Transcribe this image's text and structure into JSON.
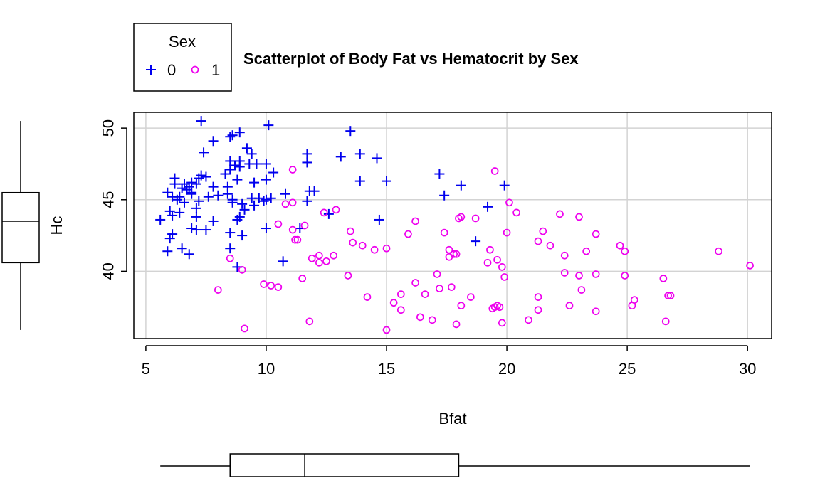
{
  "chart_data": {
    "type": "scatter",
    "title": "Scatterplot of Body Fat vs Hematocrit by Sex",
    "xlabel": "Bfat",
    "ylabel": "Hc",
    "xlim": [
      4.5,
      31.0
    ],
    "ylim": [
      35.3,
      51.1
    ],
    "xticks": [
      5,
      10,
      15,
      20,
      25,
      30
    ],
    "yticks": [
      40,
      45,
      50
    ],
    "grid": true,
    "legend": {
      "title": "Sex",
      "position": "top-left",
      "entries": [
        "0",
        "1"
      ]
    },
    "colors": {
      "0": "#0000ee",
      "1": "#ee00ee",
      "grid": "#d3d3d3",
      "axis": "#000000"
    },
    "markers": {
      "0": "plus",
      "1": "circle"
    },
    "marginal_boxplots": {
      "x": {
        "min": 5.6,
        "q1": 8.5,
        "median": 11.6,
        "q3": 18.0,
        "max": 30.1
      },
      "y": {
        "min": 35.9,
        "q1": 40.6,
        "median": 43.5,
        "q3": 45.5,
        "max": 50.5
      }
    },
    "series": [
      {
        "name": "0",
        "points": [
          [
            7.3,
            50.5
          ],
          [
            10.1,
            50.2
          ],
          [
            13.5,
            49.8
          ],
          [
            8.9,
            49.7
          ],
          [
            8.6,
            49.5
          ],
          [
            8.5,
            49.4
          ],
          [
            7.8,
            49.1
          ],
          [
            9.2,
            48.6
          ],
          [
            7.4,
            48.3
          ],
          [
            9.4,
            48.2
          ],
          [
            11.7,
            48.2
          ],
          [
            13.9,
            48.2
          ],
          [
            13.1,
            48.0
          ],
          [
            14.6,
            47.9
          ],
          [
            8.5,
            47.7
          ],
          [
            8.9,
            47.7
          ],
          [
            11.7,
            47.6
          ],
          [
            9.3,
            47.5
          ],
          [
            9.6,
            47.5
          ],
          [
            10.0,
            47.5
          ],
          [
            8.7,
            47.4
          ],
          [
            8.9,
            47.3
          ],
          [
            8.5,
            47.1
          ],
          [
            10.3,
            46.9
          ],
          [
            17.2,
            46.8
          ],
          [
            8.3,
            46.8
          ],
          [
            7.3,
            46.7
          ],
          [
            7.5,
            46.6
          ],
          [
            7.2,
            46.5
          ],
          [
            6.2,
            46.5
          ],
          [
            8.8,
            46.4
          ],
          [
            10.0,
            46.4
          ],
          [
            13.9,
            46.3
          ],
          [
            15.0,
            46.3
          ],
          [
            9.5,
            46.2
          ],
          [
            6.9,
            46.2
          ],
          [
            6.2,
            46.1
          ],
          [
            6.6,
            46.1
          ],
          [
            7.1,
            46.1
          ],
          [
            18.1,
            46.0
          ],
          [
            19.9,
            46.0
          ],
          [
            8.4,
            45.9
          ],
          [
            6.8,
            45.9
          ],
          [
            7.8,
            45.9
          ],
          [
            6.5,
            45.8
          ],
          [
            6.7,
            45.7
          ],
          [
            11.8,
            45.6
          ],
          [
            12.0,
            45.6
          ],
          [
            6.9,
            45.5
          ],
          [
            5.9,
            45.5
          ],
          [
            6.9,
            45.4
          ],
          [
            8.4,
            45.4
          ],
          [
            10.8,
            45.4
          ],
          [
            17.4,
            45.3
          ],
          [
            8.0,
            45.3
          ],
          [
            6.1,
            45.2
          ],
          [
            6.4,
            45.2
          ],
          [
            7.6,
            45.2
          ],
          [
            9.7,
            45.1
          ],
          [
            9.4,
            45.1
          ],
          [
            10.0,
            45.0
          ],
          [
            10.2,
            45.1
          ],
          [
            8.6,
            45.0
          ],
          [
            6.3,
            45.0
          ],
          [
            7.2,
            44.9
          ],
          [
            9.9,
            44.9
          ],
          [
            11.7,
            44.9
          ],
          [
            8.6,
            44.8
          ],
          [
            6.6,
            44.8
          ],
          [
            9.0,
            44.7
          ],
          [
            9.5,
            44.6
          ],
          [
            19.2,
            44.5
          ],
          [
            7.1,
            44.4
          ],
          [
            9.1,
            44.3
          ],
          [
            6.0,
            44.2
          ],
          [
            6.4,
            44.1
          ],
          [
            12.6,
            44.0
          ],
          [
            6.1,
            43.9
          ],
          [
            8.9,
            43.8
          ],
          [
            7.1,
            43.8
          ],
          [
            5.6,
            43.6
          ],
          [
            8.8,
            43.6
          ],
          [
            14.7,
            43.6
          ],
          [
            7.8,
            43.5
          ],
          [
            11.4,
            43.0
          ],
          [
            6.9,
            43.0
          ],
          [
            7.1,
            42.9
          ],
          [
            7.5,
            42.9
          ],
          [
            10.0,
            43.0
          ],
          [
            8.5,
            42.7
          ],
          [
            9.0,
            42.5
          ],
          [
            6.1,
            42.6
          ],
          [
            6.0,
            42.3
          ],
          [
            18.7,
            42.1
          ],
          [
            8.5,
            41.6
          ],
          [
            6.5,
            41.6
          ],
          [
            5.9,
            41.4
          ],
          [
            6.8,
            41.2
          ],
          [
            10.7,
            40.7
          ],
          [
            8.8,
            40.3
          ]
        ]
      },
      {
        "name": "1",
        "points": [
          [
            19.5,
            47.0
          ],
          [
            11.1,
            47.1
          ],
          [
            20.1,
            44.8
          ],
          [
            11.1,
            44.8
          ],
          [
            10.8,
            44.7
          ],
          [
            20.4,
            44.1
          ],
          [
            12.4,
            44.1
          ],
          [
            12.9,
            44.3
          ],
          [
            22.2,
            44.0
          ],
          [
            23.0,
            43.8
          ],
          [
            18.0,
            43.7
          ],
          [
            18.1,
            43.8
          ],
          [
            18.7,
            43.7
          ],
          [
            16.2,
            43.5
          ],
          [
            10.5,
            43.3
          ],
          [
            11.6,
            43.2
          ],
          [
            11.1,
            42.9
          ],
          [
            13.5,
            42.8
          ],
          [
            21.5,
            42.8
          ],
          [
            17.4,
            42.7
          ],
          [
            20.0,
            42.7
          ],
          [
            15.9,
            42.6
          ],
          [
            23.7,
            42.6
          ],
          [
            11.3,
            42.2
          ],
          [
            11.2,
            42.2
          ],
          [
            21.3,
            42.1
          ],
          [
            13.6,
            42.0
          ],
          [
            14.0,
            41.8
          ],
          [
            21.8,
            41.8
          ],
          [
            24.7,
            41.8
          ],
          [
            15.0,
            41.6
          ],
          [
            14.5,
            41.5
          ],
          [
            17.6,
            41.5
          ],
          [
            19.3,
            41.5
          ],
          [
            23.3,
            41.4
          ],
          [
            24.9,
            41.4
          ],
          [
            28.8,
            41.4
          ],
          [
            17.8,
            41.2
          ],
          [
            17.9,
            41.2
          ],
          [
            17.6,
            41.0
          ],
          [
            22.4,
            41.1
          ],
          [
            12.2,
            41.1
          ],
          [
            12.8,
            41.1
          ],
          [
            11.9,
            40.9
          ],
          [
            8.5,
            40.9
          ],
          [
            19.6,
            40.8
          ],
          [
            12.5,
            40.7
          ],
          [
            12.2,
            40.6
          ],
          [
            19.2,
            40.6
          ],
          [
            19.8,
            40.3
          ],
          [
            30.1,
            40.4
          ],
          [
            9.0,
            40.1
          ],
          [
            22.4,
            39.9
          ],
          [
            23.7,
            39.8
          ],
          [
            17.1,
            39.8
          ],
          [
            13.4,
            39.7
          ],
          [
            19.9,
            39.6
          ],
          [
            23.0,
            39.7
          ],
          [
            24.9,
            39.7
          ],
          [
            26.5,
            39.5
          ],
          [
            11.5,
            39.5
          ],
          [
            16.2,
            39.2
          ],
          [
            9.9,
            39.1
          ],
          [
            10.2,
            39.0
          ],
          [
            10.5,
            38.9
          ],
          [
            17.7,
            38.9
          ],
          [
            17.2,
            38.8
          ],
          [
            23.1,
            38.7
          ],
          [
            8.0,
            38.7
          ],
          [
            15.6,
            38.4
          ],
          [
            16.6,
            38.4
          ],
          [
            14.2,
            38.2
          ],
          [
            18.5,
            38.2
          ],
          [
            21.3,
            38.2
          ],
          [
            26.7,
            38.3
          ],
          [
            26.8,
            38.3
          ],
          [
            25.3,
            38.0
          ],
          [
            15.3,
            37.8
          ],
          [
            18.1,
            37.6
          ],
          [
            19.6,
            37.6
          ],
          [
            22.6,
            37.6
          ],
          [
            25.2,
            37.6
          ],
          [
            19.5,
            37.5
          ],
          [
            19.7,
            37.5
          ],
          [
            19.4,
            37.4
          ],
          [
            15.6,
            37.3
          ],
          [
            21.3,
            37.3
          ],
          [
            23.7,
            37.2
          ],
          [
            16.4,
            36.8
          ],
          [
            16.9,
            36.6
          ],
          [
            20.9,
            36.6
          ],
          [
            11.8,
            36.5
          ],
          [
            19.8,
            36.4
          ],
          [
            26.6,
            36.5
          ],
          [
            17.9,
            36.3
          ],
          [
            9.1,
            36.0
          ],
          [
            15.0,
            35.9
          ]
        ]
      }
    ]
  }
}
